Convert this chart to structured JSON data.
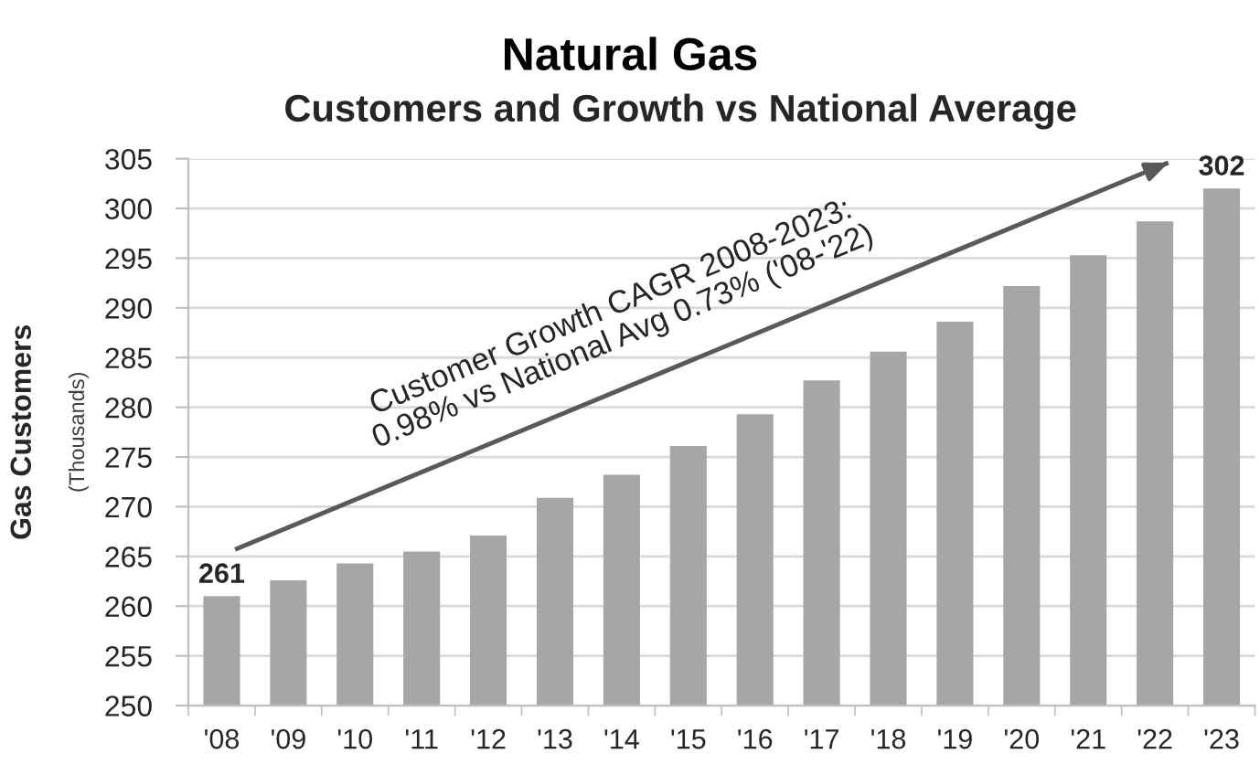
{
  "chart_data": {
    "type": "bar",
    "title": "Natural Gas",
    "subtitle": "Customers and Growth vs National Average",
    "ylabel": "Gas Customers\n(Thousands)",
    "x": [
      2008,
      2009,
      2010,
      2011,
      2012,
      2013,
      2014,
      2015,
      2016,
      2017,
      2018,
      2019,
      2020,
      2021,
      2022,
      2023
    ],
    "series": [
      {
        "color": "#a6a6a6",
        "values": [
          261,
          262.6,
          264.3,
          265.5,
          267.1,
          270.9,
          273.2,
          276.1,
          279.3,
          282.7,
          285.6,
          288.6,
          292.2,
          295.3,
          298.7,
          302
        ],
        "value_labels": [
          "261",
          null,
          null,
          null,
          null,
          null,
          null,
          null,
          null,
          null,
          null,
          null,
          null,
          null,
          null,
          "302"
        ]
      },
      {
        "type": "line",
        "x": [
          2008.2,
          2022.2
        ],
        "values": [
          265.7,
          304.6
        ],
        "color": "#595959"
      }
    ],
    "annotations": [
      {
        "text": "Customer Growth CAGR 2008-2023:\n0.98% vs National Avg 0.73% ('08-'22)",
        "x": 2014.3,
        "y": 282.6
      }
    ],
    "xlim": [
      2007.5,
      2023.5
    ],
    "xticks": [
      {
        "value": 2007.5,
        "label": null
      },
      {
        "value": 2008,
        "label": "'08"
      },
      {
        "value": 2008.5,
        "label": null
      },
      {
        "value": 2009,
        "label": "'09"
      },
      {
        "value": 2009.5,
        "label": null
      },
      {
        "value": 2010,
        "label": "'10"
      },
      {
        "value": 2010.5,
        "label": null
      },
      {
        "value": 2011,
        "label": "'11"
      },
      {
        "value": 2011.5,
        "label": null
      },
      {
        "value": 2012,
        "label": "'12"
      },
      {
        "value": 2012.5,
        "label": null
      },
      {
        "value": 2013,
        "label": "'13"
      },
      {
        "value": 2013.5,
        "label": null
      },
      {
        "value": 2014,
        "label": "'14"
      },
      {
        "value": 2014.5,
        "label": null
      },
      {
        "value": 2015,
        "label": "'15"
      },
      {
        "value": 2015.5,
        "label": null
      },
      {
        "value": 2016,
        "label": "'16"
      },
      {
        "value": 2016.5,
        "label": null
      },
      {
        "value": 2017,
        "label": "'17"
      },
      {
        "value": 2017.5,
        "label": null
      },
      {
        "value": 2018,
        "label": "'18"
      },
      {
        "value": 2018.5,
        "label": null
      },
      {
        "value": 2019,
        "label": "'19"
      },
      {
        "value": 2019.5,
        "label": null
      },
      {
        "value": 2020,
        "label": "'20"
      },
      {
        "value": 2020.5,
        "label": null
      },
      {
        "value": 2021,
        "label": "'21"
      },
      {
        "value": 2021.5,
        "label": null
      },
      {
        "value": 2022,
        "label": "'22"
      },
      {
        "value": 2022.5,
        "label": null
      },
      {
        "value": 2023,
        "label": "'23"
      },
      {
        "value": 2023.5,
        "label": null
      }
    ],
    "ylim": [
      250,
      305
    ],
    "yticks": [
      250,
      255,
      260,
      265,
      270,
      275,
      280,
      285,
      290,
      295,
      300,
      305
    ],
    "grid": "y"
  }
}
